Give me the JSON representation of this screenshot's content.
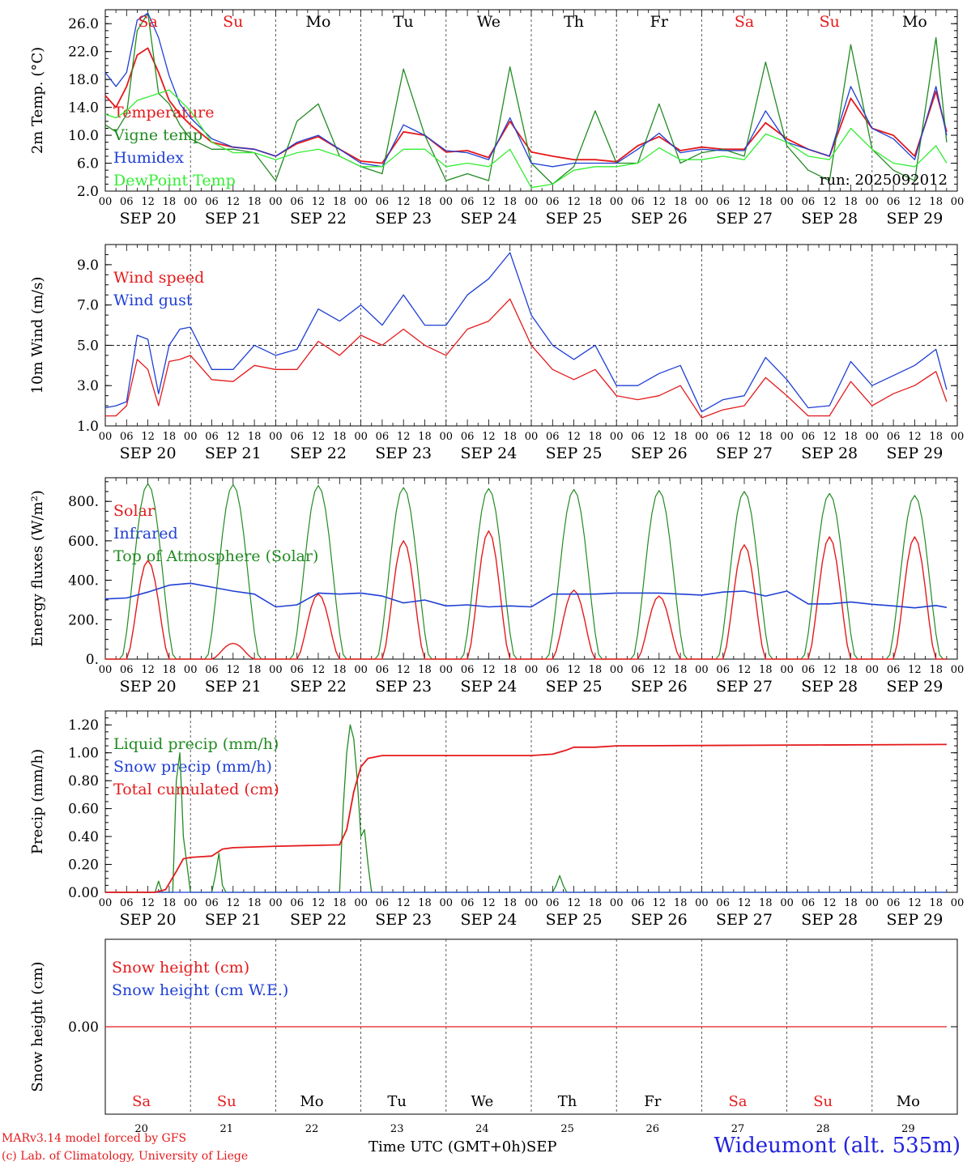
{
  "chart_data": {
    "type": "line",
    "station": "Wideumont (alt. 535m)",
    "credits": [
      "MARv3.14 model forced by GFS",
      "(c) Lab. of Climatology, University of Liege"
    ],
    "run_label": "run: 2025092012",
    "xlabel": "Time UTC (GMT+0h)",
    "month": "SEP",
    "dates": [
      "SEP 20",
      "SEP 21",
      "SEP 22",
      "SEP 23",
      "SEP 24",
      "SEP 25",
      "SEP 26",
      "SEP 27",
      "SEP 28",
      "SEP 29"
    ],
    "day_numbers": [
      "20",
      "21",
      "22",
      "23",
      "24",
      "25",
      "26",
      "27",
      "28",
      "29"
    ],
    "weekdays": [
      "Sa",
      "Su",
      "Mo",
      "Tu",
      "We",
      "Th",
      "Fr",
      "Sa",
      "Su",
      "Mo"
    ],
    "weekend_color": "#e41a1c",
    "hour_ticks": [
      "00",
      "06",
      "12",
      "18"
    ],
    "panels": [
      {
        "id": "temp",
        "ylabel": "2m Temp. (°C)",
        "ylim": [
          2,
          28
        ],
        "yticks": [
          2,
          6,
          10,
          14,
          18,
          22,
          26
        ],
        "ytick_labels": [
          "2.0",
          "6.0",
          "10.0",
          "14.0",
          "18.0",
          "22.0",
          "26.0"
        ],
        "series": [
          {
            "name": "Temperature",
            "color": "#e41a1c",
            "t": [
              0,
              3,
              6,
              9,
              12,
              15,
              18,
              21,
              24,
              30,
              36,
              42,
              48,
              54,
              60,
              66,
              72,
              78,
              84,
              90,
              96,
              102,
              108,
              114,
              120,
              126,
              132,
              138,
              144,
              150,
              156,
              162,
              168,
              174,
              180,
              186,
              192,
              198,
              204,
              210,
              216,
              222,
              228,
              234,
              237
            ],
            "v": [
              15.7,
              14.0,
              17.0,
              21.5,
              22.5,
              19.0,
              15.0,
              13.0,
              11.5,
              9.0,
              8.3,
              8.0,
              7.0,
              8.8,
              9.8,
              8.0,
              6.3,
              6.0,
              10.5,
              10.0,
              7.6,
              7.8,
              6.8,
              12.0,
              7.6,
              7.0,
              6.5,
              6.5,
              6.2,
              8.5,
              9.8,
              7.8,
              8.3,
              8.0,
              8.0,
              11.8,
              9.5,
              8.0,
              7.0,
              15.3,
              11.0,
              10.0,
              7.0,
              16.3,
              10.5
            ]
          },
          {
            "name": "Vigne temp",
            "color": "#228b22",
            "t": [
              0,
              3,
              6,
              9,
              12,
              15,
              18,
              21,
              24,
              30,
              36,
              42,
              48,
              54,
              60,
              66,
              72,
              78,
              84,
              90,
              96,
              102,
              108,
              114,
              120,
              126,
              132,
              138,
              144,
              150,
              156,
              162,
              168,
              174,
              180,
              186,
              192,
              198,
              204,
              210,
              216,
              222,
              228,
              234,
              237
            ],
            "v": [
              11.5,
              10.5,
              13.0,
              25.0,
              27.5,
              16.0,
              14.5,
              11.5,
              9.5,
              8.0,
              8.0,
              7.5,
              3.5,
              12.0,
              14.5,
              7.0,
              5.5,
              4.5,
              19.5,
              10.0,
              3.5,
              4.5,
              3.5,
              19.8,
              6.0,
              3.0,
              5.5,
              13.5,
              6.0,
              6.0,
              14.5,
              6.0,
              7.5,
              8.0,
              7.0,
              20.5,
              8.5,
              5.0,
              3.5,
              23.0,
              8.0,
              5.0,
              3.5,
              24.0,
              9.0
            ]
          },
          {
            "name": "Humidex",
            "color": "#1f3fd4",
            "t": [
              0,
              3,
              6,
              9,
              12,
              15,
              18,
              21,
              24,
              30,
              36,
              42,
              48,
              54,
              60,
              66,
              72,
              78,
              84,
              90,
              96,
              102,
              108,
              114,
              120,
              126,
              132,
              138,
              144,
              150,
              156,
              162,
              168,
              174,
              180,
              186,
              192,
              198,
              204,
              210,
              216,
              222,
              228,
              234,
              237
            ],
            "v": [
              19.0,
              17.0,
              19.0,
              26.5,
              27.5,
              24.0,
              18.5,
              14.5,
              12.5,
              9.5,
              8.3,
              8.0,
              7.0,
              9.0,
              10.0,
              8.0,
              6.0,
              5.5,
              11.5,
              10.0,
              7.8,
              7.5,
              6.5,
              12.5,
              6.0,
              5.5,
              6.0,
              6.0,
              6.0,
              8.0,
              10.3,
              7.5,
              8.0,
              7.8,
              7.8,
              13.5,
              9.0,
              8.0,
              7.0,
              17.0,
              11.0,
              9.5,
              6.5,
              17.0,
              10.0
            ]
          },
          {
            "name": "DewPoint Temp",
            "color": "#33ee33",
            "t": [
              0,
              3,
              6,
              9,
              12,
              15,
              18,
              21,
              24,
              30,
              36,
              42,
              48,
              54,
              60,
              66,
              72,
              78,
              84,
              90,
              96,
              102,
              108,
              114,
              120,
              126,
              132,
              138,
              144,
              150,
              156,
              162,
              168,
              174,
              180,
              186,
              192,
              198,
              204,
              210,
              216,
              222,
              228,
              234,
              237
            ],
            "v": [
              13.0,
              12.5,
              13.5,
              15.0,
              15.5,
              16.0,
              16.5,
              15.0,
              13.5,
              9.0,
              7.5,
              7.5,
              6.5,
              7.5,
              8.0,
              7.0,
              5.5,
              5.5,
              8.0,
              8.0,
              5.5,
              6.0,
              5.5,
              8.0,
              2.5,
              3.0,
              5.0,
              5.5,
              5.5,
              6.0,
              8.2,
              6.5,
              6.5,
              7.0,
              6.5,
              10.2,
              9.0,
              7.0,
              6.5,
              11.0,
              8.0,
              6.0,
              5.5,
              8.5,
              6.0
            ]
          }
        ]
      },
      {
        "id": "wind",
        "ylabel": "10m Wind (m/s)",
        "ylim": [
          1,
          10
        ],
        "yticks": [
          1,
          3,
          5,
          7,
          9
        ],
        "ytick_labels": [
          "1.0",
          "3.0",
          "5.0",
          "7.0",
          "9.0"
        ],
        "ref_line": 5,
        "series": [
          {
            "name": "Wind speed",
            "color": "#e41a1c",
            "t": [
              0,
              3,
              6,
              9,
              12,
              15,
              18,
              21,
              24,
              30,
              36,
              42,
              48,
              54,
              60,
              66,
              72,
              78,
              84,
              90,
              96,
              102,
              108,
              114,
              120,
              126,
              132,
              138,
              144,
              150,
              156,
              162,
              168,
              174,
              180,
              186,
              192,
              198,
              204,
              210,
              216,
              222,
              228,
              234,
              237
            ],
            "v": [
              1.5,
              1.5,
              2.0,
              4.3,
              3.8,
              2.0,
              4.2,
              4.3,
              4.5,
              3.3,
              3.2,
              4.0,
              3.8,
              3.8,
              5.2,
              4.5,
              5.5,
              5.0,
              5.8,
              5.0,
              4.5,
              5.8,
              6.2,
              7.3,
              5.0,
              3.8,
              3.3,
              3.8,
              2.5,
              2.3,
              2.5,
              3.0,
              1.4,
              1.8,
              2.0,
              3.4,
              2.5,
              1.5,
              1.5,
              3.2,
              2.0,
              2.6,
              3.0,
              3.7,
              2.2
            ]
          },
          {
            "name": "Wind gust",
            "color": "#1f3fd4",
            "t": [
              0,
              3,
              6,
              9,
              12,
              15,
              18,
              21,
              24,
              30,
              36,
              42,
              48,
              54,
              60,
              66,
              72,
              78,
              84,
              90,
              96,
              102,
              108,
              114,
              120,
              126,
              132,
              138,
              144,
              150,
              156,
              162,
              168,
              174,
              180,
              186,
              192,
              198,
              204,
              210,
              216,
              222,
              228,
              234,
              237
            ],
            "v": [
              1.9,
              2.0,
              2.2,
              5.5,
              5.3,
              2.6,
              5.0,
              5.8,
              5.9,
              3.8,
              3.8,
              5.0,
              4.5,
              4.8,
              6.8,
              6.2,
              7.0,
              6.0,
              7.5,
              6.0,
              6.0,
              7.5,
              8.3,
              9.6,
              6.5,
              5.0,
              4.3,
              5.0,
              3.0,
              3.0,
              3.6,
              4.0,
              1.7,
              2.3,
              2.5,
              4.4,
              3.3,
              1.9,
              2.0,
              4.2,
              3.0,
              3.5,
              4.0,
              4.8,
              2.8
            ]
          }
        ]
      },
      {
        "id": "energy",
        "ylabel": "Energy fluxes (W/m²)",
        "ylim": [
          0,
          920
        ],
        "yticks": [
          0,
          200,
          400,
          600,
          800
        ],
        "ytick_labels": [
          "0.",
          "200.",
          "400.",
          "600.",
          "800."
        ],
        "solar_peaks": [
          500,
          80,
          330,
          600,
          650,
          350,
          320,
          580,
          620,
          620
        ],
        "toa_peaks": [
          890,
          885,
          880,
          870,
          865,
          860,
          855,
          850,
          840,
          830
        ],
        "series": [
          {
            "name": "Solar",
            "color": "#e41a1c"
          },
          {
            "name": "Infrared",
            "color": "#1f3fd4",
            "t": [
              0,
              6,
              12,
              18,
              24,
              30,
              36,
              42,
              48,
              54,
              60,
              66,
              72,
              78,
              84,
              90,
              96,
              102,
              108,
              114,
              120,
              126,
              132,
              138,
              144,
              150,
              156,
              162,
              168,
              174,
              180,
              186,
              192,
              198,
              204,
              210,
              216,
              222,
              228,
              234,
              237
            ],
            "v": [
              305,
              310,
              340,
              375,
              385,
              365,
              345,
              330,
              265,
              275,
              335,
              330,
              335,
              320,
              285,
              300,
              270,
              275,
              265,
              270,
              265,
              330,
              330,
              330,
              335,
              335,
              335,
              330,
              325,
              340,
              345,
              320,
              345,
              280,
              280,
              290,
              278,
              270,
              260,
              272,
              262
            ]
          },
          {
            "name": "Top of Atmosphere (Solar)",
            "color": "#228b22"
          }
        ]
      },
      {
        "id": "precip",
        "ylabel": "Precip (mm/h)",
        "ylim": [
          0,
          1.3
        ],
        "yticks": [
          0,
          0.2,
          0.4,
          0.6,
          0.8,
          1.0,
          1.2
        ],
        "ytick_labels": [
          "0.00",
          "0.20",
          "0.40",
          "0.60",
          "0.80",
          "1.00",
          "1.20"
        ],
        "series": [
          {
            "name": "Liquid precip (mm/h)",
            "color": "#228b22",
            "t": [
              0,
              14,
              15,
              16,
              19,
              20,
              21,
              22,
              24,
              30,
              31,
              32,
              33,
              34,
              36,
              48,
              66,
              67,
              68,
              69,
              70,
              71,
              72,
              73,
              74,
              75,
              76,
              78,
              126,
              127,
              128,
              129,
              130,
              131,
              132,
              138,
              237
            ],
            "v": [
              0,
              0,
              0.08,
              0,
              0,
              0.8,
              1.0,
              0.4,
              0,
              0,
              0.12,
              0.28,
              0.05,
              0,
              0,
              0,
              0,
              0.6,
              1.0,
              1.2,
              1.1,
              0.8,
              0.4,
              0.45,
              0.2,
              0,
              0,
              0,
              0,
              0.05,
              0.12,
              0.05,
              0,
              0,
              0,
              0,
              0
            ]
          },
          {
            "name": "Snow precip (mm/h)",
            "color": "#1f3fd4",
            "t": [
              0,
              237
            ],
            "v": [
              0,
              0
            ]
          },
          {
            "name": "Total cumulated (cm)",
            "color": "#e41a1c",
            "t": [
              0,
              14,
              17,
              20,
              22,
              24,
              30,
              33,
              36,
              48,
              66,
              68,
              70,
              72,
              74,
              76,
              78,
              120,
              126,
              130,
              132,
              138,
              144,
              237
            ],
            "v": [
              0,
              0,
              0.02,
              0.15,
              0.24,
              0.25,
              0.26,
              0.31,
              0.32,
              0.33,
              0.34,
              0.45,
              0.72,
              0.9,
              0.96,
              0.97,
              0.98,
              0.98,
              0.99,
              1.02,
              1.04,
              1.04,
              1.05,
              1.06
            ]
          }
        ]
      },
      {
        "id": "snow",
        "ylabel": "Snow height (cm)",
        "ylim": [
          -1,
          1
        ],
        "yticks": [
          0
        ],
        "ytick_labels": [
          "0.00"
        ],
        "series": [
          {
            "name": "Snow height (cm)",
            "color": "#e41a1c",
            "t": [
              0,
              237
            ],
            "v": [
              0,
              0
            ]
          },
          {
            "name": "Snow height (cm W.E.)",
            "color": "#1f3fd4"
          }
        ]
      }
    ]
  }
}
